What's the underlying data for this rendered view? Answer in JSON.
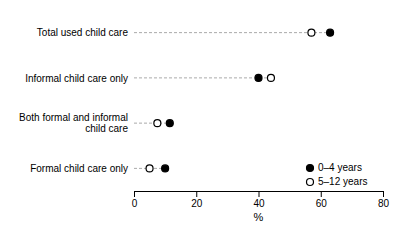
{
  "chart_data": {
    "type": "dot",
    "categories": [
      "Formal child care only",
      "Both formal and informal\nchild care",
      "Informal child care only",
      "Total used child care"
    ],
    "series": [
      {
        "name": "0–4 years",
        "color": "#000000",
        "marker": "circle",
        "values": [
          10.0,
          11.5,
          40.0,
          63.0
        ]
      },
      {
        "name": "5–12 years",
        "color": "#000000",
        "marker": "circle-open",
        "values": [
          5.0,
          7.5,
          44.0,
          57.0
        ]
      }
    ],
    "xlabel": "%",
    "xlim": [
      0,
      80
    ],
    "xticks": [
      0,
      20,
      40,
      60,
      80
    ],
    "grid": false,
    "legend": "lower right"
  }
}
